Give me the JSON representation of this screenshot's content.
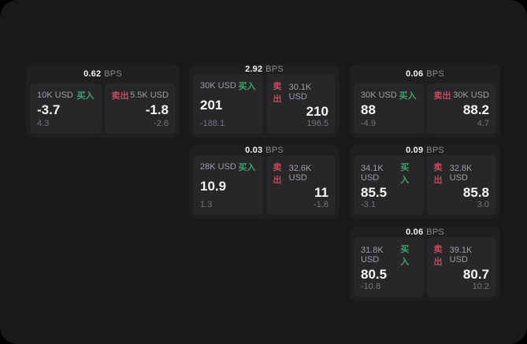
{
  "labels": {
    "buy": "买入",
    "sell": "卖出",
    "bps_unit": "BPS"
  },
  "colors": {
    "buy": "#40a268",
    "sell": "#c44a5d",
    "window_bg": "#19191a",
    "card_bg": "#1f1f20",
    "panel_bg": "#27272a"
  },
  "cards": [
    {
      "row": 1,
      "col": 1,
      "bps": "0.62",
      "buy": {
        "amount": "10K USD",
        "value": "-3.7",
        "delta": "4.3"
      },
      "sell": {
        "amount": "5.5K USD",
        "value": "-1.8",
        "delta": "-2.6"
      }
    },
    {
      "row": 1,
      "col": 2,
      "bps": "2.92",
      "buy": {
        "amount": "30K USD",
        "value": "201",
        "delta": "-188.1"
      },
      "sell": {
        "amount": "30.1K USD",
        "value": "210",
        "delta": "196.5"
      }
    },
    {
      "row": 1,
      "col": 3,
      "bps": "0.06",
      "buy": {
        "amount": "30K USD",
        "value": "88",
        "delta": "-4.9"
      },
      "sell": {
        "amount": "30K USD",
        "value": "88.2",
        "delta": "4.7"
      }
    },
    {
      "row": 2,
      "col": 2,
      "bps": "0.03",
      "buy": {
        "amount": "28K USD",
        "value": "10.9",
        "delta": "1.3"
      },
      "sell": {
        "amount": "32.6K USD",
        "value": "11",
        "delta": "-1.8"
      }
    },
    {
      "row": 2,
      "col": 3,
      "bps": "0.09",
      "buy": {
        "amount": "34.1K USD",
        "value": "85.5",
        "delta": "-3.1"
      },
      "sell": {
        "amount": "32.8K USD",
        "value": "85.8",
        "delta": "3.0"
      }
    },
    {
      "row": 3,
      "col": 3,
      "bps": "0.06",
      "buy": {
        "amount": "31.8K USD",
        "value": "80.5",
        "delta": "-10.8"
      },
      "sell": {
        "amount": "39.1K USD",
        "value": "80.7",
        "delta": "10.2"
      }
    }
  ]
}
